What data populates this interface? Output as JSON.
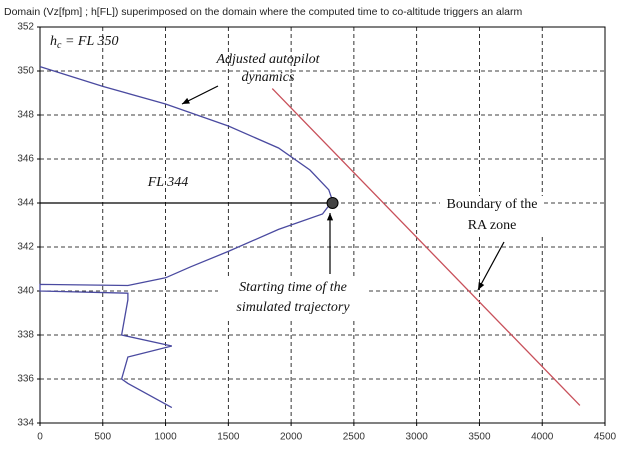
{
  "chart_data": {
    "type": "line",
    "title": "Domain (Vz[fpm] ; h[FL]) superimposed on the domain where the computed time to co-altitude triggers an alarm",
    "xlim": [
      0,
      4500
    ],
    "xticks": [
      0,
      500,
      1000,
      1500,
      2000,
      2500,
      3000,
      3500,
      4000,
      4500
    ],
    "ylim": [
      334,
      352
    ],
    "yticks": [
      334,
      336,
      338,
      340,
      342,
      344,
      346,
      348,
      350,
      352
    ],
    "grid": true,
    "series": [
      {
        "color": "#4a4aa0",
        "x": [
          0,
          500,
          1000,
          1500,
          1900,
          2150,
          2300,
          2330,
          2250,
          1900,
          1500,
          1200,
          1000,
          700,
          0,
          0,
          700,
          700,
          650,
          1050,
          700,
          650,
          700,
          1050
        ],
        "values": [
          350.2,
          349.3,
          348.5,
          347.5,
          346.5,
          345.5,
          344.6,
          344.1,
          343.5,
          342.8,
          341.8,
          341.1,
          340.6,
          340.25,
          340.3,
          340.0,
          339.9,
          339.6,
          338.0,
          337.5,
          337.0,
          336.0,
          335.8,
          334.7
        ]
      },
      {
        "color": "#c8505a",
        "x": [
          1850,
          4300
        ],
        "values": [
          349.2,
          334.8
        ]
      }
    ],
    "reference_line": {
      "y": 344,
      "x": [
        0,
        2330
      ]
    },
    "point": {
      "x": 2330,
      "y": 344
    },
    "annotations": {
      "hc": {
        "h": "h",
        "sub": "c",
        "rest": " = FL 350"
      },
      "autopilot": [
        "Adjusted autopilot",
        "dynamics"
      ],
      "fl344": "FL 344",
      "boundary": [
        "Boundary of the",
        "RA zone"
      ],
      "start": [
        "Starting time of the",
        "simulated trajectory"
      ]
    }
  }
}
